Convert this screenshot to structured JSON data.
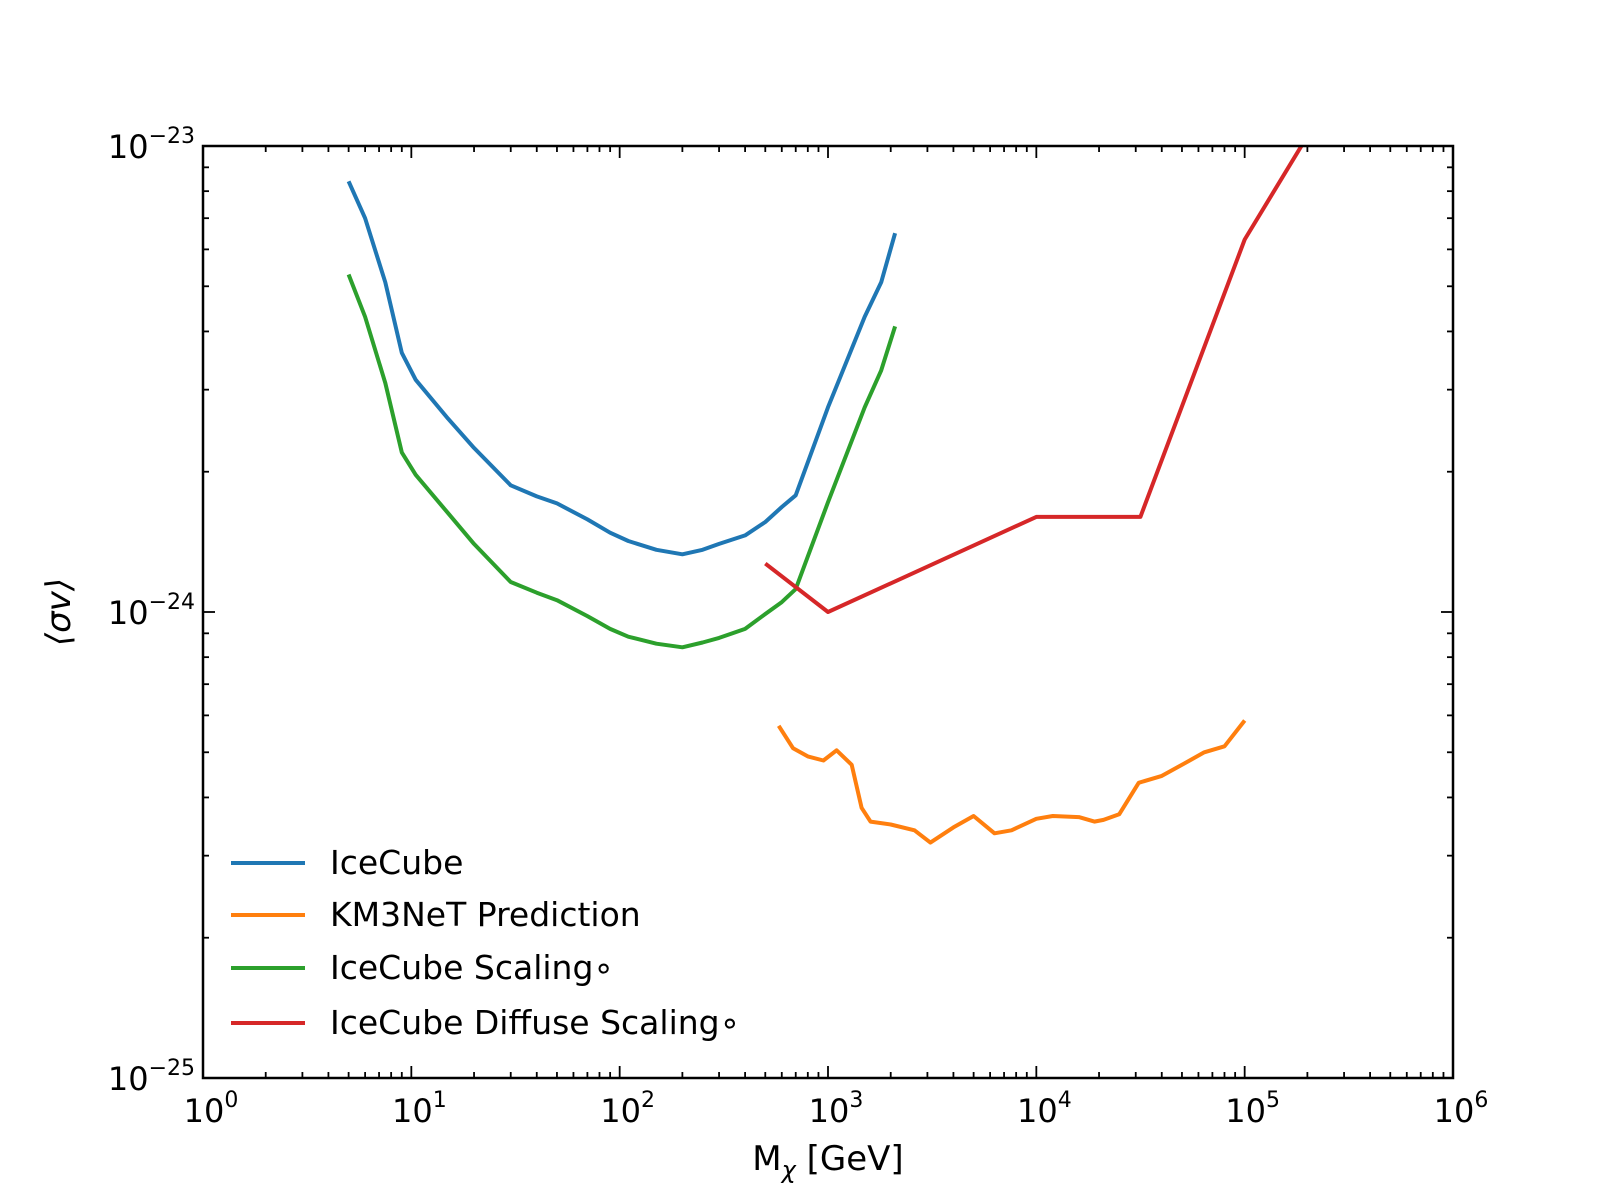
{
  "chart_data": {
    "type": "line",
    "xscale": "log",
    "yscale": "log",
    "xlim": [
      1,
      1000000
    ],
    "ylim": [
      1e-25,
      1e-23
    ],
    "x_ticks": [
      {
        "base": "10",
        "exp": "0"
      },
      {
        "base": "10",
        "exp": "1"
      },
      {
        "base": "10",
        "exp": "2"
      },
      {
        "base": "10",
        "exp": "3"
      },
      {
        "base": "10",
        "exp": "4"
      },
      {
        "base": "10",
        "exp": "5"
      },
      {
        "base": "10",
        "exp": "6"
      }
    ],
    "y_ticks": [
      {
        "base": "10",
        "exp": "−25"
      },
      {
        "base": "10",
        "exp": "−24"
      },
      {
        "base": "10",
        "exp": "−23"
      }
    ],
    "xlabel": {
      "main": "M",
      "sub": "χ",
      "rest": " [GeV]"
    },
    "ylabel": "⟨σv⟩",
    "grid": false,
    "legend_position": "lower-left",
    "series": [
      {
        "name": "IceCube",
        "color": "#1f77b4",
        "x": [
          5,
          6,
          7.5,
          9,
          10.5,
          15,
          20,
          30,
          40,
          50,
          70,
          90,
          110,
          150,
          200,
          250,
          300,
          400,
          500,
          600,
          700,
          1000,
          1500,
          1800,
          2100
        ],
        "y": [
          8.4e-24,
          7e-24,
          5.1e-24,
          3.6e-24,
          3.15e-24,
          2.6e-24,
          2.25e-24,
          1.87e-24,
          1.77e-24,
          1.71e-24,
          1.58e-24,
          1.48e-24,
          1.42e-24,
          1.36e-24,
          1.33e-24,
          1.36e-24,
          1.4e-24,
          1.46e-24,
          1.56e-24,
          1.68e-24,
          1.78e-24,
          2.75e-24,
          4.3e-24,
          5.1e-24,
          6.5e-24
        ]
      },
      {
        "name": "KM3NeT Prediction",
        "color": "#ff7f0e",
        "x": [
          580,
          680,
          800,
          950,
          1100,
          1300,
          1450,
          1600,
          2000,
          2600,
          3100,
          4000,
          5000,
          6300,
          7600,
          10000,
          12000,
          16000,
          19000,
          21000,
          25000,
          31000,
          40000,
          50000,
          64000,
          80000,
          100000
        ],
        "y": [
          5.7e-25,
          5.1e-25,
          4.9e-25,
          4.8e-25,
          5.05e-25,
          4.7e-25,
          3.8e-25,
          3.55e-25,
          3.5e-25,
          3.4e-25,
          3.2e-25,
          3.45e-25,
          3.65e-25,
          3.35e-25,
          3.4e-25,
          3.6e-25,
          3.65e-25,
          3.63e-25,
          3.55e-25,
          3.58e-25,
          3.68e-25,
          4.3e-25,
          4.45e-25,
          4.7e-25,
          5e-25,
          5.15e-25,
          5.85e-25
        ]
      },
      {
        "name": "IceCube Scaling∘",
        "color": "#2ca02c",
        "x": [
          5,
          6,
          7.5,
          9,
          10.5,
          15,
          20,
          30,
          40,
          50,
          70,
          90,
          110,
          150,
          200,
          250,
          300,
          400,
          500,
          600,
          700,
          1000,
          1500,
          1800,
          2100
        ],
        "y": [
          5.3e-24,
          4.3e-24,
          3.1e-24,
          2.2e-24,
          1.97e-24,
          1.63e-24,
          1.4e-24,
          1.16e-24,
          1.1e-24,
          1.06e-24,
          9.8e-25,
          9.2e-25,
          8.85e-25,
          8.55e-25,
          8.4e-25,
          8.6e-25,
          8.8e-25,
          9.2e-25,
          9.9e-25,
          1.05e-24,
          1.12e-24,
          1.72e-24,
          2.75e-24,
          3.3e-24,
          4.1e-24
        ]
      },
      {
        "name": "IceCube Diffuse Scaling∘",
        "color": "#d62728",
        "x": [
          500,
          1000,
          10000,
          31600,
          100000,
          200000
        ],
        "y": [
          1.27e-24,
          1e-24,
          1.6e-24,
          1.6e-24,
          6.3e-24,
          1.05e-23
        ]
      }
    ]
  }
}
